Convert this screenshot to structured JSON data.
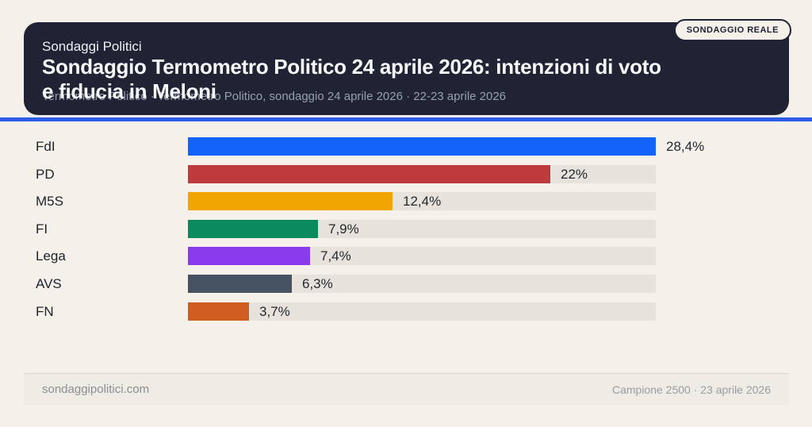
{
  "header": {
    "kicker": "Sondaggi Politici",
    "title": "Sondaggio Termometro Politico 24 aprile 2026: intenzioni di voto\ne fiducia in Meloni",
    "subtitle": "Termometro Politico · Termometro Politico, sondaggio 24 aprile 2026 · 22-23 aprile 2026",
    "badge_label": "SONDAGGIO REALE"
  },
  "colors": {
    "page_background": "#f5f1ea",
    "card_background": "#202334",
    "accent_line": "#2d5be8",
    "bar_track": "#e7e3dc"
  },
  "chart_data": {
    "type": "bar",
    "orientation": "horizontal",
    "title": "Sondaggio Termometro Politico 24 aprile 2026: intenzioni di voto e fiducia in Meloni",
    "categories": [
      "FdI",
      "PD",
      "M5S",
      "FI",
      "Lega",
      "AVS",
      "FN"
    ],
    "values": [
      28.4,
      22,
      12.4,
      7.9,
      7.4,
      6.3,
      3.7
    ],
    "value_labels": [
      "28,4%",
      "22%",
      "12,4%",
      "7,9%",
      "7,4%",
      "6,3%",
      "3,7%"
    ],
    "bar_colors": [
      "#1163fa",
      "#bf3a3d",
      "#f0a502",
      "#0a8a5e",
      "#8a3bee",
      "#475263",
      "#d05e20"
    ],
    "xlim": [
      0,
      28.4
    ],
    "grid": false,
    "legend": false
  },
  "footer": {
    "site": "sondaggipolitici.com",
    "meta": "Campione 2500 · 23 aprile 2026"
  }
}
